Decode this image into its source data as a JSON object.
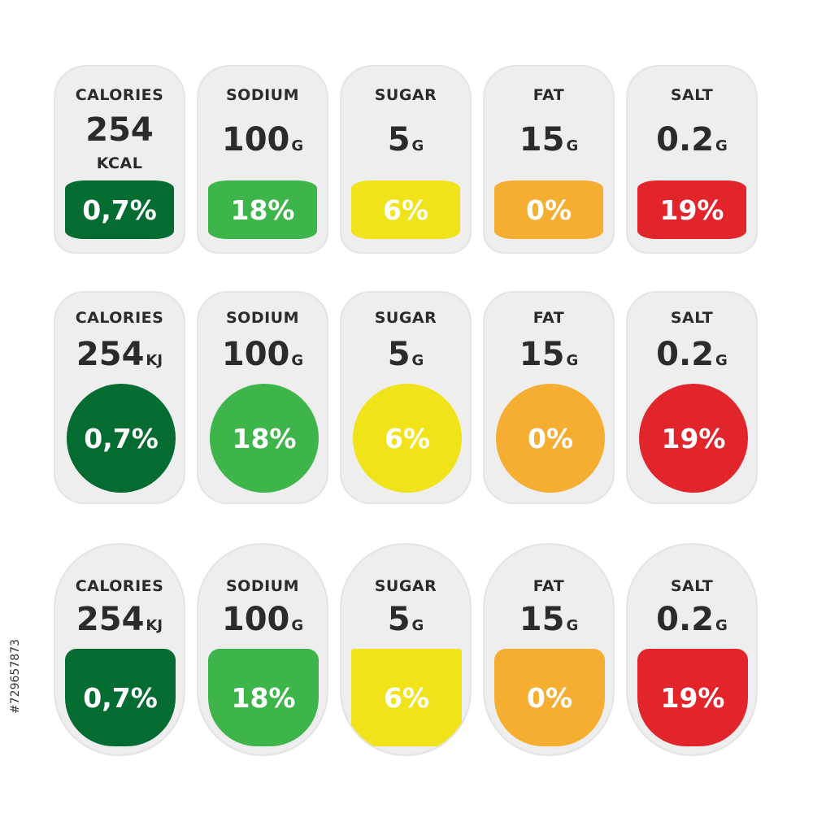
{
  "colors": {
    "dark_green": "#046b31",
    "green": "#3db54a",
    "yellow": "#f0e31a",
    "orange": "#f6ae32",
    "red": "#e2242b",
    "card": "#eeeeee"
  },
  "rows": [
    {
      "cards": [
        {
          "label": "CALORIES",
          "value": "254",
          "unit": "KCAL",
          "percent": "0,7%"
        },
        {
          "label": "SODIUM",
          "value": "100",
          "unit": "G",
          "percent": "18%"
        },
        {
          "label": "SUGAR",
          "value": "5",
          "unit": "G",
          "percent": "6%"
        },
        {
          "label": "FAT",
          "value": "15",
          "unit": "G",
          "percent": "0%"
        },
        {
          "label": "SALT",
          "value": "0.2",
          "unit": "G",
          "percent": "19%"
        }
      ]
    },
    {
      "cards": [
        {
          "label": "CALORIES",
          "value": "254",
          "unit": "KJ",
          "percent": "0,7%"
        },
        {
          "label": "SODIUM",
          "value": "100",
          "unit": "G",
          "percent": "18%"
        },
        {
          "label": "SUGAR",
          "value": "5",
          "unit": "G",
          "percent": "6%"
        },
        {
          "label": "FAT",
          "value": "15",
          "unit": "G",
          "percent": "0%"
        },
        {
          "label": "SALT",
          "value": "0.2",
          "unit": "G",
          "percent": "19%"
        }
      ]
    },
    {
      "cards": [
        {
          "label": "CALORIES",
          "value": "254",
          "unit": "KJ",
          "percent": "0,7%"
        },
        {
          "label": "SODIUM",
          "value": "100",
          "unit": "G",
          "percent": "18%"
        },
        {
          "label": "SUGAR",
          "value": "5",
          "unit": "G",
          "percent": "6%"
        },
        {
          "label": "FAT",
          "value": "15",
          "unit": "G",
          "percent": "0%"
        },
        {
          "label": "SALT",
          "value": "0.2",
          "unit": "G",
          "percent": "19%"
        }
      ]
    }
  ],
  "stock_id": "#729657873"
}
